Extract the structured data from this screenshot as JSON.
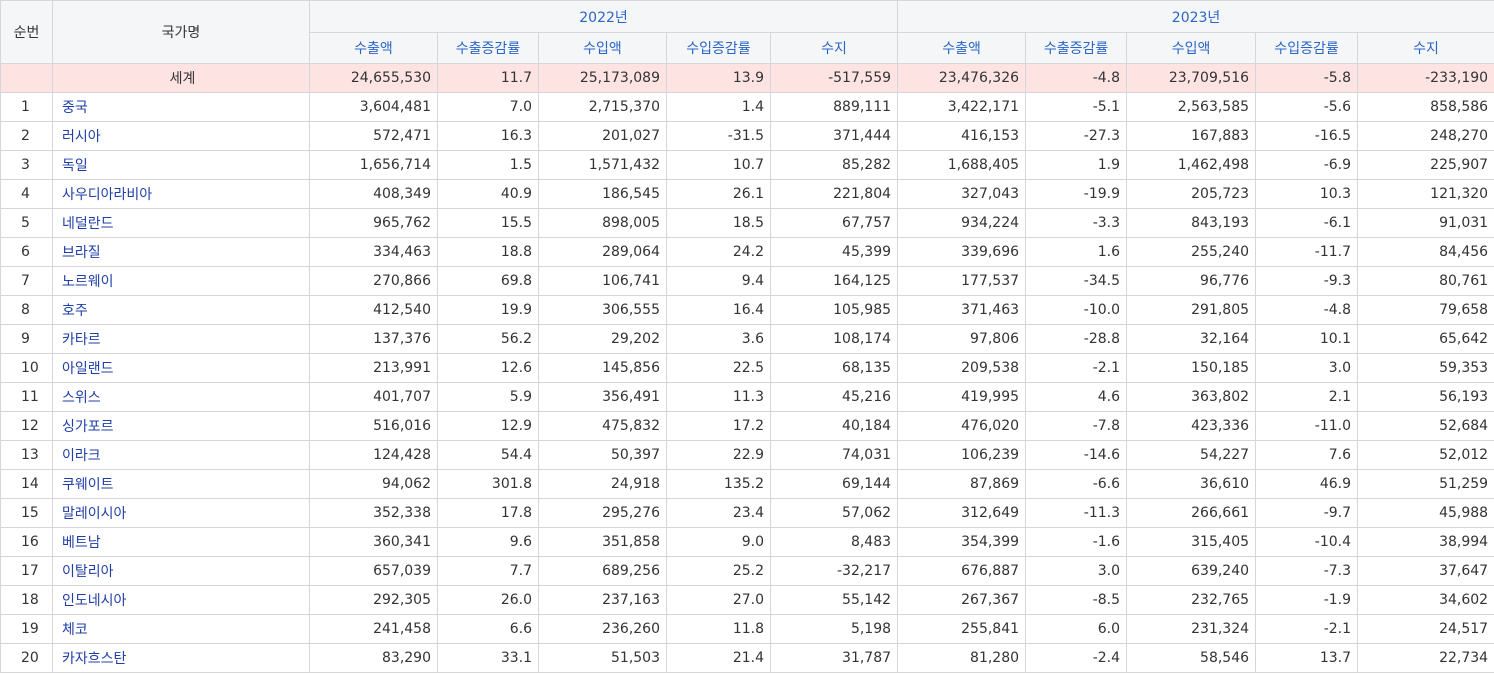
{
  "headers": {
    "no": "순번",
    "country": "국가명",
    "year1": "2022년",
    "year2": "2023년",
    "cols": [
      "수출액",
      "수출증감률",
      "수입액",
      "수입증감률",
      "수지"
    ]
  },
  "world": {
    "name": "세계",
    "y2022": [
      "24,655,530",
      "11.7",
      "25,173,089",
      "13.9",
      "-517,559"
    ],
    "y2023": [
      "23,476,326",
      "-4.8",
      "23,709,516",
      "-5.8",
      "-233,190"
    ]
  },
  "rows": [
    {
      "no": "1",
      "name": "중국",
      "y2022": [
        "3,604,481",
        "7.0",
        "2,715,370",
        "1.4",
        "889,111"
      ],
      "y2023": [
        "3,422,171",
        "-5.1",
        "2,563,585",
        "-5.6",
        "858,586"
      ]
    },
    {
      "no": "2",
      "name": "러시아",
      "y2022": [
        "572,471",
        "16.3",
        "201,027",
        "-31.5",
        "371,444"
      ],
      "y2023": [
        "416,153",
        "-27.3",
        "167,883",
        "-16.5",
        "248,270"
      ]
    },
    {
      "no": "3",
      "name": "독일",
      "y2022": [
        "1,656,714",
        "1.5",
        "1,571,432",
        "10.7",
        "85,282"
      ],
      "y2023": [
        "1,688,405",
        "1.9",
        "1,462,498",
        "-6.9",
        "225,907"
      ]
    },
    {
      "no": "4",
      "name": "사우디아라비아",
      "y2022": [
        "408,349",
        "40.9",
        "186,545",
        "26.1",
        "221,804"
      ],
      "y2023": [
        "327,043",
        "-19.9",
        "205,723",
        "10.3",
        "121,320"
      ]
    },
    {
      "no": "5",
      "name": "네덜란드",
      "y2022": [
        "965,762",
        "15.5",
        "898,005",
        "18.5",
        "67,757"
      ],
      "y2023": [
        "934,224",
        "-3.3",
        "843,193",
        "-6.1",
        "91,031"
      ]
    },
    {
      "no": "6",
      "name": "브라질",
      "y2022": [
        "334,463",
        "18.8",
        "289,064",
        "24.2",
        "45,399"
      ],
      "y2023": [
        "339,696",
        "1.6",
        "255,240",
        "-11.7",
        "84,456"
      ]
    },
    {
      "no": "7",
      "name": "노르웨이",
      "y2022": [
        "270,866",
        "69.8",
        "106,741",
        "9.4",
        "164,125"
      ],
      "y2023": [
        "177,537",
        "-34.5",
        "96,776",
        "-9.3",
        "80,761"
      ]
    },
    {
      "no": "8",
      "name": "호주",
      "y2022": [
        "412,540",
        "19.9",
        "306,555",
        "16.4",
        "105,985"
      ],
      "y2023": [
        "371,463",
        "-10.0",
        "291,805",
        "-4.8",
        "79,658"
      ]
    },
    {
      "no": "9",
      "name": "카타르",
      "y2022": [
        "137,376",
        "56.2",
        "29,202",
        "3.6",
        "108,174"
      ],
      "y2023": [
        "97,806",
        "-28.8",
        "32,164",
        "10.1",
        "65,642"
      ]
    },
    {
      "no": "10",
      "name": "아일랜드",
      "y2022": [
        "213,991",
        "12.6",
        "145,856",
        "22.5",
        "68,135"
      ],
      "y2023": [
        "209,538",
        "-2.1",
        "150,185",
        "3.0",
        "59,353"
      ]
    },
    {
      "no": "11",
      "name": "스위스",
      "y2022": [
        "401,707",
        "5.9",
        "356,491",
        "11.3",
        "45,216"
      ],
      "y2023": [
        "419,995",
        "4.6",
        "363,802",
        "2.1",
        "56,193"
      ]
    },
    {
      "no": "12",
      "name": "싱가포르",
      "y2022": [
        "516,016",
        "12.9",
        "475,832",
        "17.2",
        "40,184"
      ],
      "y2023": [
        "476,020",
        "-7.8",
        "423,336",
        "-11.0",
        "52,684"
      ]
    },
    {
      "no": "13",
      "name": "이라크",
      "y2022": [
        "124,428",
        "54.4",
        "50,397",
        "22.9",
        "74,031"
      ],
      "y2023": [
        "106,239",
        "-14.6",
        "54,227",
        "7.6",
        "52,012"
      ]
    },
    {
      "no": "14",
      "name": "쿠웨이트",
      "y2022": [
        "94,062",
        "301.8",
        "24,918",
        "135.2",
        "69,144"
      ],
      "y2023": [
        "87,869",
        "-6.6",
        "36,610",
        "46.9",
        "51,259"
      ]
    },
    {
      "no": "15",
      "name": "말레이시아",
      "y2022": [
        "352,338",
        "17.8",
        "295,276",
        "23.4",
        "57,062"
      ],
      "y2023": [
        "312,649",
        "-11.3",
        "266,661",
        "-9.7",
        "45,988"
      ]
    },
    {
      "no": "16",
      "name": "베트남",
      "y2022": [
        "360,341",
        "9.6",
        "351,858",
        "9.0",
        "8,483"
      ],
      "y2023": [
        "354,399",
        "-1.6",
        "315,405",
        "-10.4",
        "38,994"
      ]
    },
    {
      "no": "17",
      "name": "이탈리아",
      "y2022": [
        "657,039",
        "7.7",
        "689,256",
        "25.2",
        "-32,217"
      ],
      "y2023": [
        "676,887",
        "3.0",
        "639,240",
        "-7.3",
        "37,647"
      ]
    },
    {
      "no": "18",
      "name": "인도네시아",
      "y2022": [
        "292,305",
        "26.0",
        "237,163",
        "27.0",
        "55,142"
      ],
      "y2023": [
        "267,367",
        "-8.5",
        "232,765",
        "-1.9",
        "34,602"
      ]
    },
    {
      "no": "19",
      "name": "체코",
      "y2022": [
        "241,458",
        "6.6",
        "236,260",
        "11.8",
        "5,198"
      ],
      "y2023": [
        "255,841",
        "6.0",
        "231,324",
        "-2.1",
        "24,517"
      ]
    },
    {
      "no": "20",
      "name": "카자흐스탄",
      "y2022": [
        "83,290",
        "33.1",
        "51,503",
        "21.4",
        "31,787"
      ],
      "y2023": [
        "81,280",
        "-2.4",
        "58,546",
        "13.7",
        "22,734"
      ]
    }
  ]
}
